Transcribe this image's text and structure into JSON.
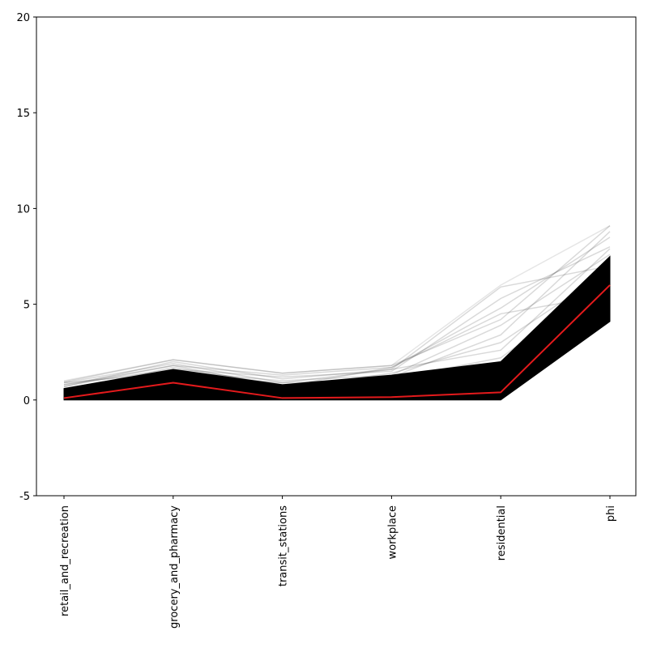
{
  "chart_data": {
    "type": "line",
    "chart_kind": "parallel-coordinates",
    "title": "",
    "xlabel": "",
    "ylabel": "",
    "categories": [
      "retail_and_recreation",
      "grocery_and_pharmacy",
      "transit_stations",
      "workplace",
      "residential",
      "phi"
    ],
    "ylim": [
      -5,
      20
    ],
    "yticks": [
      -5,
      0,
      5,
      10,
      15,
      20
    ],
    "grid": false,
    "legend": "none",
    "series": [
      {
        "values": [
          0.1,
          0.9,
          0.1,
          0.15,
          0.4,
          6.0
        ],
        "color": "#e41a1c",
        "emphasis": true
      }
    ],
    "background_traces": {
      "color": "#000000",
      "opacity": 0.1,
      "lower_envelope": [
        0.0,
        0.0,
        0.0,
        0.0,
        0.0,
        4.1
      ],
      "upper_envelope": [
        1.0,
        2.1,
        1.4,
        1.8,
        6.0,
        9.1
      ],
      "typical_high": [
        0.6,
        1.6,
        0.8,
        1.3,
        2.0,
        7.5
      ],
      "sample_traces": [
        [
          0.9,
          1.9,
          0.9,
          1.6,
          5.9,
          7.0
        ],
        [
          0.8,
          1.6,
          1.2,
          1.5,
          5.3,
          8.0
        ],
        [
          0.7,
          1.8,
          0.7,
          1.7,
          4.8,
          8.5
        ],
        [
          0.95,
          2.1,
          1.4,
          1.8,
          4.2,
          9.1
        ],
        [
          0.6,
          1.5,
          1.0,
          1.3,
          3.9,
          7.6
        ],
        [
          0.5,
          1.7,
          0.8,
          1.2,
          3.4,
          8.8
        ],
        [
          0.9,
          1.4,
          0.6,
          1.4,
          3.0,
          6.8
        ],
        [
          0.7,
          2.0,
          1.1,
          1.6,
          2.6,
          7.9
        ],
        [
          0.4,
          1.3,
          0.9,
          1.1,
          2.2,
          6.4
        ],
        [
          0.8,
          1.8,
          1.3,
          1.7,
          4.5,
          5.5
        ],
        [
          0.6,
          1.2,
          0.7,
          1.0,
          1.8,
          4.9
        ],
        [
          0.3,
          1.0,
          0.5,
          0.9,
          1.2,
          4.2
        ],
        [
          0.2,
          0.5,
          0.3,
          0.4,
          0.8,
          4.6
        ],
        [
          0.1,
          0.2,
          0.1,
          0.1,
          0.3,
          5.2
        ],
        [
          0.0,
          0.0,
          0.0,
          0.0,
          0.0,
          5.0
        ],
        [
          0.5,
          0.8,
          0.4,
          0.6,
          1.0,
          5.8
        ]
      ]
    }
  }
}
